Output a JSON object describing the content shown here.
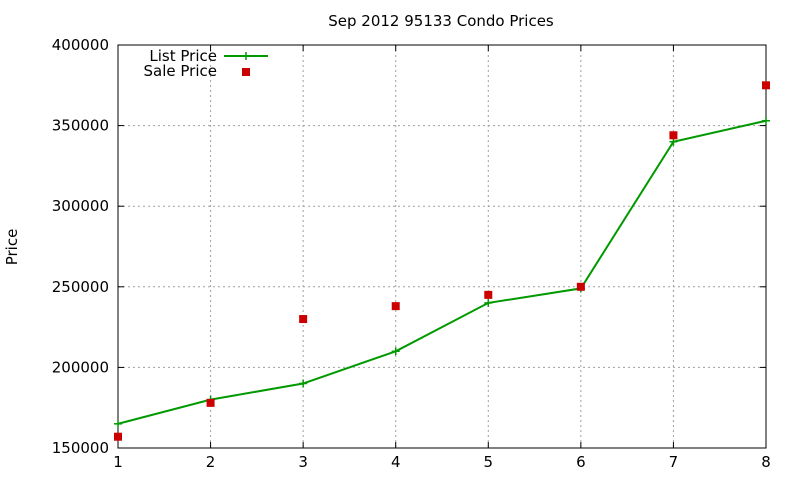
{
  "chart_data": {
    "type": "line",
    "title": "Sep 2012 95133 Condo Prices",
    "xlabel": "",
    "ylabel": "Price",
    "xlim": [
      1,
      8
    ],
    "ylim": [
      150000,
      400000
    ],
    "x_ticks": [
      "1",
      "2",
      "3",
      "4",
      "5",
      "6",
      "7",
      "8"
    ],
    "y_ticks": [
      "150000",
      "200000",
      "250000",
      "300000",
      "350000",
      "400000"
    ],
    "grid": true,
    "legend_position": "top-left",
    "series": [
      {
        "name": "List Price",
        "style": "line-with-plus-markers",
        "color": "#009900",
        "x": [
          1,
          2,
          3,
          4,
          5,
          6,
          7,
          8
        ],
        "y": [
          165000,
          180000,
          190000,
          210000,
          240000,
          249000,
          340000,
          353000
        ]
      },
      {
        "name": "Sale Price",
        "style": "square-points",
        "color": "#cc0000",
        "x": [
          1,
          2,
          3,
          4,
          5,
          6,
          7,
          8
        ],
        "y": [
          157000,
          178000,
          230000,
          238000,
          245000,
          250000,
          344000,
          375000
        ]
      }
    ]
  }
}
